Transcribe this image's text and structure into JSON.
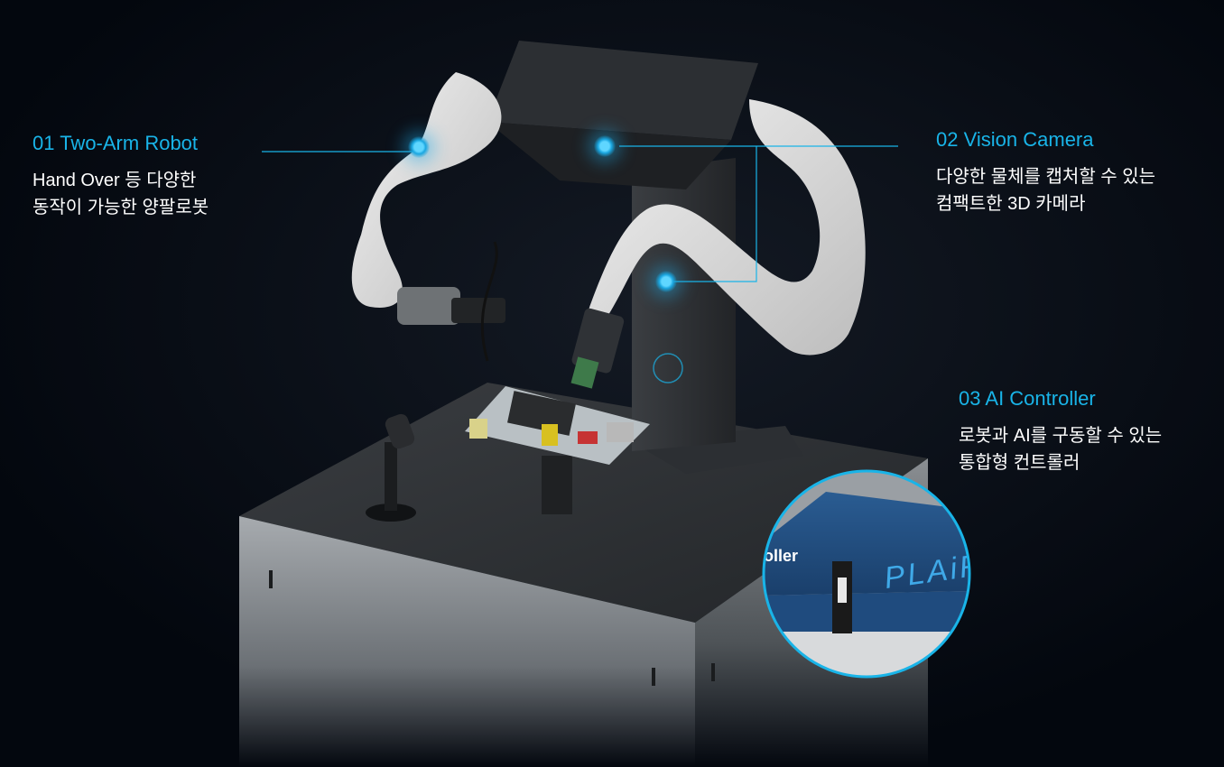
{
  "features": [
    {
      "number": "01",
      "name": "Two-Arm Robot",
      "desc": [
        "Hand Over 등 다양한",
        "동작이 가능한 양팔로봇"
      ]
    },
    {
      "number": "02",
      "name": "Vision Camera",
      "desc": [
        "다양한 물체를 캡처할 수 있는",
        "컴팩트한 3D 카메라"
      ]
    },
    {
      "number": "03",
      "name": "AI Controller",
      "desc": [
        "로봇과 AI를 구동할 수 있는",
        "통합형 컨트롤러"
      ]
    }
  ],
  "product": {
    "logo": "PLAiF",
    "controller_label": "oller"
  },
  "colors": {
    "accent": "#19b4e8",
    "background": "#03070e",
    "text": "#ffffff",
    "controller_blue": "#1f4b7e"
  }
}
